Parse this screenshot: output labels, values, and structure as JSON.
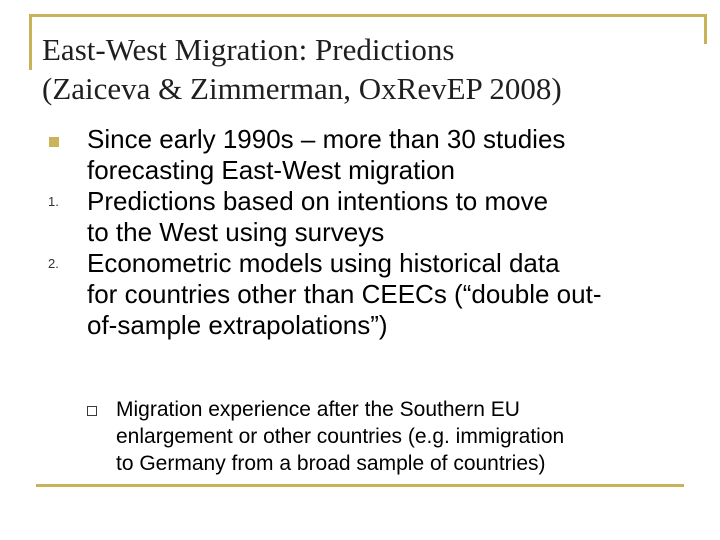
{
  "slide": {
    "title_lines": [
      "East-West Migration: Predictions",
      "(Zaiceva & Zimmerman, OxRevEP 2008)"
    ],
    "bullets": [
      {
        "marker": "",
        "lines": [
          "Since early 1990s – more than 30 studies",
          "forecasting East-West migration"
        ]
      },
      {
        "marker": "1.",
        "lines": [
          "Predictions based on intentions to move",
          "to the West using surveys"
        ]
      },
      {
        "marker": "2.",
        "lines": [
          "Econometric models using historical data",
          "for countries other than CEECs (“double out-",
          "of-sample extrapolations”)"
        ]
      }
    ],
    "sub_bullet": {
      "lines": [
        "Migration experience after the Southern EU",
        "enlargement or other countries (e.g. immigration",
        "to Germany from a broad sample of countries)"
      ]
    }
  },
  "colors": {
    "accent": "#c8b35a",
    "text": "#000000"
  },
  "icons": {
    "bullet_1": "filled-square-bullet",
    "sub_bullet": "hollow-square-bullet"
  }
}
